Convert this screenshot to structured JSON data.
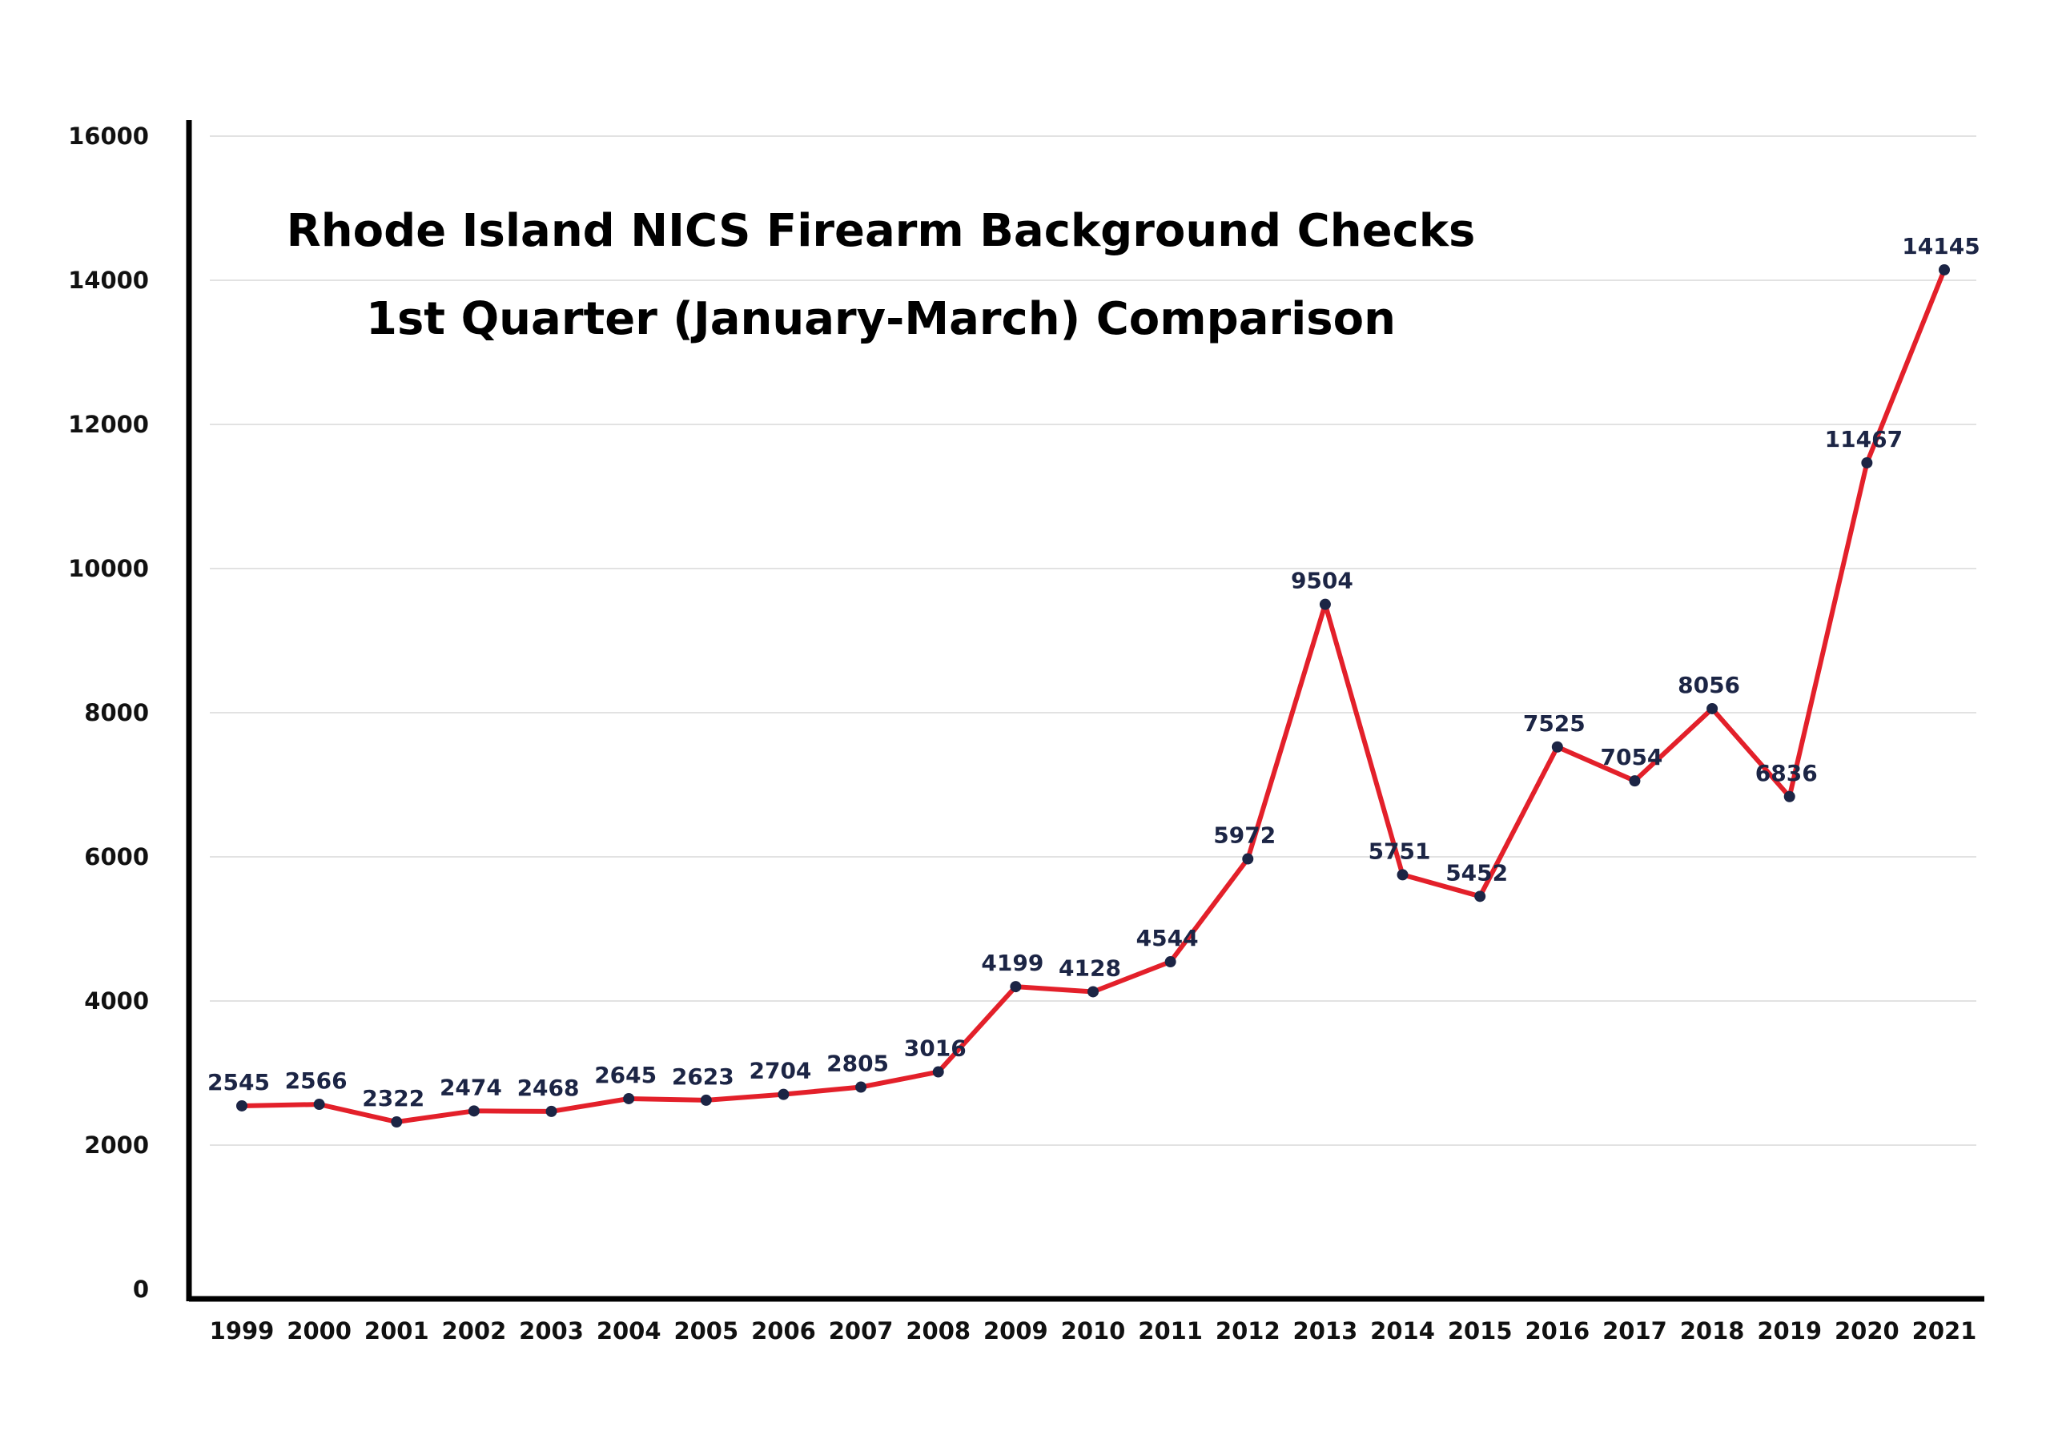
{
  "chart_data": {
    "type": "line",
    "title": "Rhode Island NICS Firearm Background Checks",
    "subtitle": "1st Quarter (January-March) Comparison",
    "xlabel": "",
    "ylabel": "",
    "categories": [
      "1999",
      "2000",
      "2001",
      "2002",
      "2003",
      "2004",
      "2005",
      "2006",
      "2007",
      "2008",
      "2009",
      "2010",
      "2011",
      "2012",
      "2013",
      "2014",
      "2015",
      "2016",
      "2017",
      "2018",
      "2019",
      "2020",
      "2021"
    ],
    "series": [
      {
        "values": [
          2545,
          2566,
          2322,
          2474,
          2468,
          2645,
          2623,
          2704,
          2805,
          3016,
          4199,
          4128,
          4544,
          5972,
          9504,
          5751,
          5452,
          7525,
          7054,
          8056,
          6836,
          11467,
          14145
        ]
      }
    ],
    "yticks": [
      "0",
      "2000",
      "4000",
      "6000",
      "8000",
      "10000",
      "12000",
      "14000",
      "16000"
    ],
    "ylim": [
      0,
      16000
    ],
    "grid": true,
    "legend": "none",
    "colors": {
      "line": "#e3202a",
      "marker": "#1c2545",
      "label": "#1c2545",
      "axis": "#000000",
      "grid": "#e2e2e2"
    }
  }
}
